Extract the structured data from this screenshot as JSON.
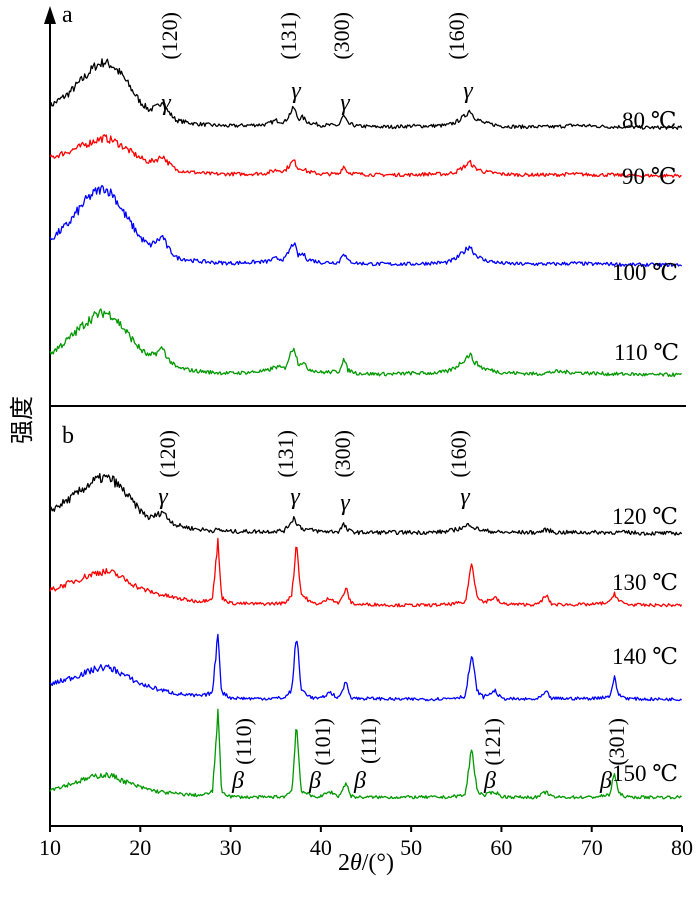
{
  "chart_data": [
    {
      "panel": "a",
      "type": "line",
      "xlabel": "2θ/(°)",
      "ylabel": "强度",
      "xlim": [
        10,
        80
      ],
      "xticks": [
        10,
        20,
        30,
        40,
        50,
        60,
        70,
        80
      ],
      "series": [
        {
          "label": "80 ℃",
          "color": "#000000",
          "x": [
            10,
            12,
            14,
            15,
            16,
            17,
            18,
            20,
            21,
            22,
            22.5,
            23,
            24,
            26,
            28,
            30,
            32,
            34,
            35,
            36,
            37,
            37.5,
            38,
            38.5,
            40,
            42,
            42.5,
            43,
            44,
            46,
            48,
            50,
            52,
            54,
            55,
            56,
            56.5,
            57,
            58,
            60,
            62,
            64,
            66,
            68,
            70,
            72,
            74,
            76,
            78,
            80
          ],
          "y": [
            0.3,
            0.45,
            0.68,
            0.8,
            0.85,
            0.8,
            0.68,
            0.35,
            0.25,
            0.3,
            0.38,
            0.24,
            0.12,
            0.08,
            0.06,
            0.05,
            0.06,
            0.07,
            0.12,
            0.1,
            0.28,
            0.14,
            0.16,
            0.1,
            0.06,
            0.06,
            0.18,
            0.08,
            0.05,
            0.04,
            0.04,
            0.05,
            0.05,
            0.06,
            0.1,
            0.18,
            0.25,
            0.16,
            0.09,
            0.05,
            0.04,
            0.04,
            0.04,
            0.06,
            0.05,
            0.04,
            0.04,
            0.03,
            0.03,
            0.03
          ]
        },
        {
          "label": "90 ℃",
          "color": "#ff0000",
          "x": [
            10,
            12,
            14,
            15,
            16,
            17,
            18,
            20,
            21,
            22,
            22.5,
            23,
            24,
            26,
            28,
            30,
            32,
            34,
            35,
            36,
            37,
            37.5,
            38,
            38.5,
            40,
            42,
            42.5,
            43,
            44,
            46,
            48,
            50,
            52,
            54,
            55,
            56,
            56.5,
            57,
            58,
            60,
            62,
            64,
            66,
            68,
            70,
            72,
            74,
            76,
            78,
            80
          ],
          "y": [
            0.25,
            0.33,
            0.42,
            0.47,
            0.5,
            0.47,
            0.4,
            0.25,
            0.2,
            0.24,
            0.28,
            0.2,
            0.1,
            0.07,
            0.05,
            0.05,
            0.05,
            0.06,
            0.1,
            0.09,
            0.22,
            0.12,
            0.12,
            0.08,
            0.05,
            0.05,
            0.15,
            0.07,
            0.05,
            0.04,
            0.04,
            0.04,
            0.05,
            0.05,
            0.08,
            0.15,
            0.2,
            0.13,
            0.08,
            0.05,
            0.04,
            0.04,
            0.04,
            0.05,
            0.04,
            0.04,
            0.03,
            0.03,
            0.03,
            0.03
          ]
        },
        {
          "label": "100 ℃",
          "color": "#0000ff",
          "x": [
            10,
            12,
            14,
            15,
            16,
            17,
            18,
            20,
            21,
            22,
            22.5,
            23,
            24,
            26,
            28,
            30,
            32,
            34,
            35,
            36,
            37,
            37.5,
            38,
            38.5,
            40,
            42,
            42.5,
            43,
            44,
            46,
            48,
            50,
            52,
            54,
            55,
            56,
            56.5,
            57,
            58,
            60,
            62,
            64,
            66,
            68,
            70,
            72,
            74,
            76,
            78,
            80
          ],
          "y": [
            0.35,
            0.55,
            0.85,
            0.95,
            1.0,
            0.92,
            0.72,
            0.38,
            0.28,
            0.35,
            0.4,
            0.26,
            0.13,
            0.09,
            0.07,
            0.06,
            0.07,
            0.08,
            0.12,
            0.11,
            0.32,
            0.15,
            0.18,
            0.11,
            0.07,
            0.07,
            0.2,
            0.09,
            0.06,
            0.05,
            0.05,
            0.05,
            0.06,
            0.07,
            0.12,
            0.22,
            0.28,
            0.18,
            0.1,
            0.06,
            0.05,
            0.05,
            0.05,
            0.06,
            0.05,
            0.05,
            0.04,
            0.04,
            0.04,
            0.04
          ]
        },
        {
          "label": "110 ℃",
          "color": "#009900",
          "x": [
            10,
            12,
            14,
            15,
            16,
            17,
            18,
            20,
            21,
            22,
            22.5,
            23,
            24,
            26,
            28,
            30,
            32,
            34,
            35,
            36,
            37,
            37.5,
            38,
            38.5,
            40,
            42,
            42.5,
            43,
            44,
            46,
            48,
            50,
            52,
            54,
            55,
            56,
            56.5,
            57,
            58,
            60,
            62,
            64,
            66,
            68,
            70,
            72,
            74,
            76,
            78,
            80
          ],
          "y": [
            0.3,
            0.48,
            0.7,
            0.78,
            0.82,
            0.78,
            0.64,
            0.36,
            0.27,
            0.33,
            0.38,
            0.25,
            0.13,
            0.09,
            0.07,
            0.06,
            0.07,
            0.09,
            0.14,
            0.12,
            0.4,
            0.18,
            0.2,
            0.12,
            0.07,
            0.08,
            0.24,
            0.1,
            0.06,
            0.05,
            0.05,
            0.06,
            0.06,
            0.08,
            0.14,
            0.24,
            0.3,
            0.2,
            0.12,
            0.07,
            0.06,
            0.05,
            0.08,
            0.07,
            0.06,
            0.05,
            0.05,
            0.04,
            0.04,
            0.04
          ]
        }
      ],
      "annotations": [
        {
          "x": 22.5,
          "miller": "(120)",
          "phase": "γ"
        },
        {
          "x": 37.2,
          "miller": "(131)",
          "phase": "γ"
        },
        {
          "x": 42.5,
          "miller": "(300)",
          "phase": "γ"
        },
        {
          "x": 56.3,
          "miller": "(160)",
          "phase": "γ"
        }
      ]
    },
    {
      "panel": "b",
      "type": "line",
      "xlabel": "2θ/(°)",
      "ylabel": "强度",
      "xlim": [
        10,
        80
      ],
      "xticks": [
        10,
        20,
        30,
        40,
        50,
        60,
        70,
        80
      ],
      "series": [
        {
          "label": "120 ℃",
          "color": "#000000",
          "x": [
            10,
            12,
            14,
            15,
            16,
            17,
            18,
            20,
            21,
            22,
            22.5,
            23,
            24,
            26,
            28,
            28.7,
            29,
            30,
            32,
            34,
            36,
            37,
            37.5,
            38,
            40,
            42,
            42.5,
            43,
            44,
            46,
            48,
            50,
            52,
            54,
            56,
            56.5,
            57,
            58,
            60,
            62,
            64,
            65,
            66,
            68,
            70,
            72,
            74,
            76,
            78,
            80
          ],
          "y": [
            0.28,
            0.4,
            0.55,
            0.62,
            0.65,
            0.62,
            0.52,
            0.28,
            0.2,
            0.24,
            0.28,
            0.2,
            0.12,
            0.08,
            0.06,
            0.07,
            0.06,
            0.05,
            0.05,
            0.05,
            0.06,
            0.2,
            0.12,
            0.08,
            0.05,
            0.05,
            0.13,
            0.06,
            0.04,
            0.04,
            0.04,
            0.04,
            0.04,
            0.05,
            0.1,
            0.14,
            0.09,
            0.06,
            0.04,
            0.04,
            0.04,
            0.07,
            0.04,
            0.04,
            0.04,
            0.04,
            0.04,
            0.03,
            0.03,
            0.03
          ]
        },
        {
          "label": "130 ℃",
          "color": "#ff0000",
          "x": [
            10,
            12,
            14,
            15,
            16,
            17,
            18,
            20,
            22,
            24,
            26,
            27,
            28,
            28.6,
            29.0,
            30,
            32,
            34,
            36,
            36.8,
            37.3,
            37.8,
            39,
            40,
            41,
            42,
            42.8,
            43.3,
            44,
            46,
            48,
            50,
            52,
            54,
            56,
            56.7,
            57.3,
            58,
            59.3,
            60,
            62,
            64,
            65.0,
            65.5,
            66,
            68,
            70,
            72,
            72.5,
            73,
            74,
            76,
            78,
            80
          ],
          "y": [
            0.25,
            0.35,
            0.45,
            0.5,
            0.52,
            0.5,
            0.43,
            0.28,
            0.2,
            0.14,
            0.1,
            0.1,
            0.15,
            0.95,
            0.15,
            0.07,
            0.06,
            0.06,
            0.07,
            0.2,
            0.95,
            0.2,
            0.07,
            0.06,
            0.15,
            0.06,
            0.28,
            0.08,
            0.05,
            0.05,
            0.04,
            0.04,
            0.04,
            0.05,
            0.08,
            0.65,
            0.18,
            0.08,
            0.15,
            0.06,
            0.05,
            0.05,
            0.18,
            0.06,
            0.05,
            0.05,
            0.05,
            0.08,
            0.22,
            0.1,
            0.05,
            0.04,
            0.04,
            0.04
          ]
        },
        {
          "label": "140 ℃",
          "color": "#0000ff",
          "x": [
            10,
            12,
            14,
            15,
            16,
            17,
            18,
            20,
            22,
            24,
            26,
            27,
            28,
            28.6,
            29.0,
            30,
            32,
            34,
            36,
            36.8,
            37.3,
            37.8,
            39,
            40,
            41,
            42,
            42.8,
            43.3,
            44,
            46,
            48,
            50,
            52,
            54,
            56,
            56.7,
            57.3,
            58,
            59.3,
            60,
            62,
            64,
            65.0,
            65.5,
            66,
            68,
            70,
            72,
            72.5,
            73,
            74,
            76,
            78,
            80
          ],
          "y": [
            0.25,
            0.33,
            0.42,
            0.47,
            0.5,
            0.47,
            0.4,
            0.26,
            0.18,
            0.12,
            0.09,
            0.09,
            0.14,
            1.0,
            0.14,
            0.06,
            0.05,
            0.05,
            0.06,
            0.18,
            1.0,
            0.18,
            0.06,
            0.05,
            0.14,
            0.05,
            0.3,
            0.07,
            0.05,
            0.05,
            0.04,
            0.04,
            0.04,
            0.05,
            0.08,
            0.68,
            0.16,
            0.07,
            0.16,
            0.05,
            0.04,
            0.04,
            0.14,
            0.05,
            0.05,
            0.05,
            0.05,
            0.08,
            0.35,
            0.1,
            0.05,
            0.04,
            0.04,
            0.04
          ]
        },
        {
          "label": "150 ℃",
          "color": "#009900",
          "x": [
            10,
            12,
            14,
            15,
            16,
            17,
            18,
            20,
            22,
            24,
            26,
            27,
            28,
            28.6,
            29.0,
            30,
            32,
            34,
            36,
            36.8,
            37.3,
            37.8,
            39,
            40,
            41,
            42,
            42.8,
            43.3,
            44,
            46,
            48,
            50,
            52,
            54,
            56,
            56.7,
            57.3,
            58,
            59.3,
            60,
            62,
            64,
            65.0,
            65.5,
            66,
            68,
            70,
            72,
            72.5,
            73,
            74,
            76,
            78,
            80
          ],
          "y": [
            0.15,
            0.22,
            0.3,
            0.34,
            0.36,
            0.34,
            0.28,
            0.18,
            0.12,
            0.09,
            0.07,
            0.07,
            0.12,
            1.25,
            0.12,
            0.05,
            0.04,
            0.04,
            0.05,
            0.14,
            1.1,
            0.14,
            0.05,
            0.05,
            0.12,
            0.05,
            0.25,
            0.06,
            0.04,
            0.04,
            0.04,
            0.04,
            0.04,
            0.04,
            0.07,
            0.75,
            0.14,
            0.06,
            0.12,
            0.05,
            0.04,
            0.04,
            0.12,
            0.05,
            0.04,
            0.04,
            0.04,
            0.07,
            0.4,
            0.09,
            0.04,
            0.04,
            0.04,
            0.04
          ]
        }
      ],
      "annotations": [
        {
          "x": 22.3,
          "miller": "(120)",
          "phase": "γ"
        },
        {
          "x": 37.0,
          "miller": "(131)",
          "phase": "γ"
        },
        {
          "x": 42.5,
          "miller": "(300)",
          "phase": "γ"
        },
        {
          "x": 56.3,
          "miller": "(160)",
          "phase": "γ"
        },
        {
          "x": 28.7,
          "miller": "(110)",
          "phase": "β"
        },
        {
          "x": 37.3,
          "miller": "(101)",
          "phase": "β"
        },
        {
          "x": 42.8,
          "miller": "(111)",
          "phase": "β"
        },
        {
          "x": 56.7,
          "miller": "(121)",
          "phase": "β"
        },
        {
          "x": 72.4,
          "miller": "(301)",
          "phase": "β"
        }
      ]
    }
  ]
}
